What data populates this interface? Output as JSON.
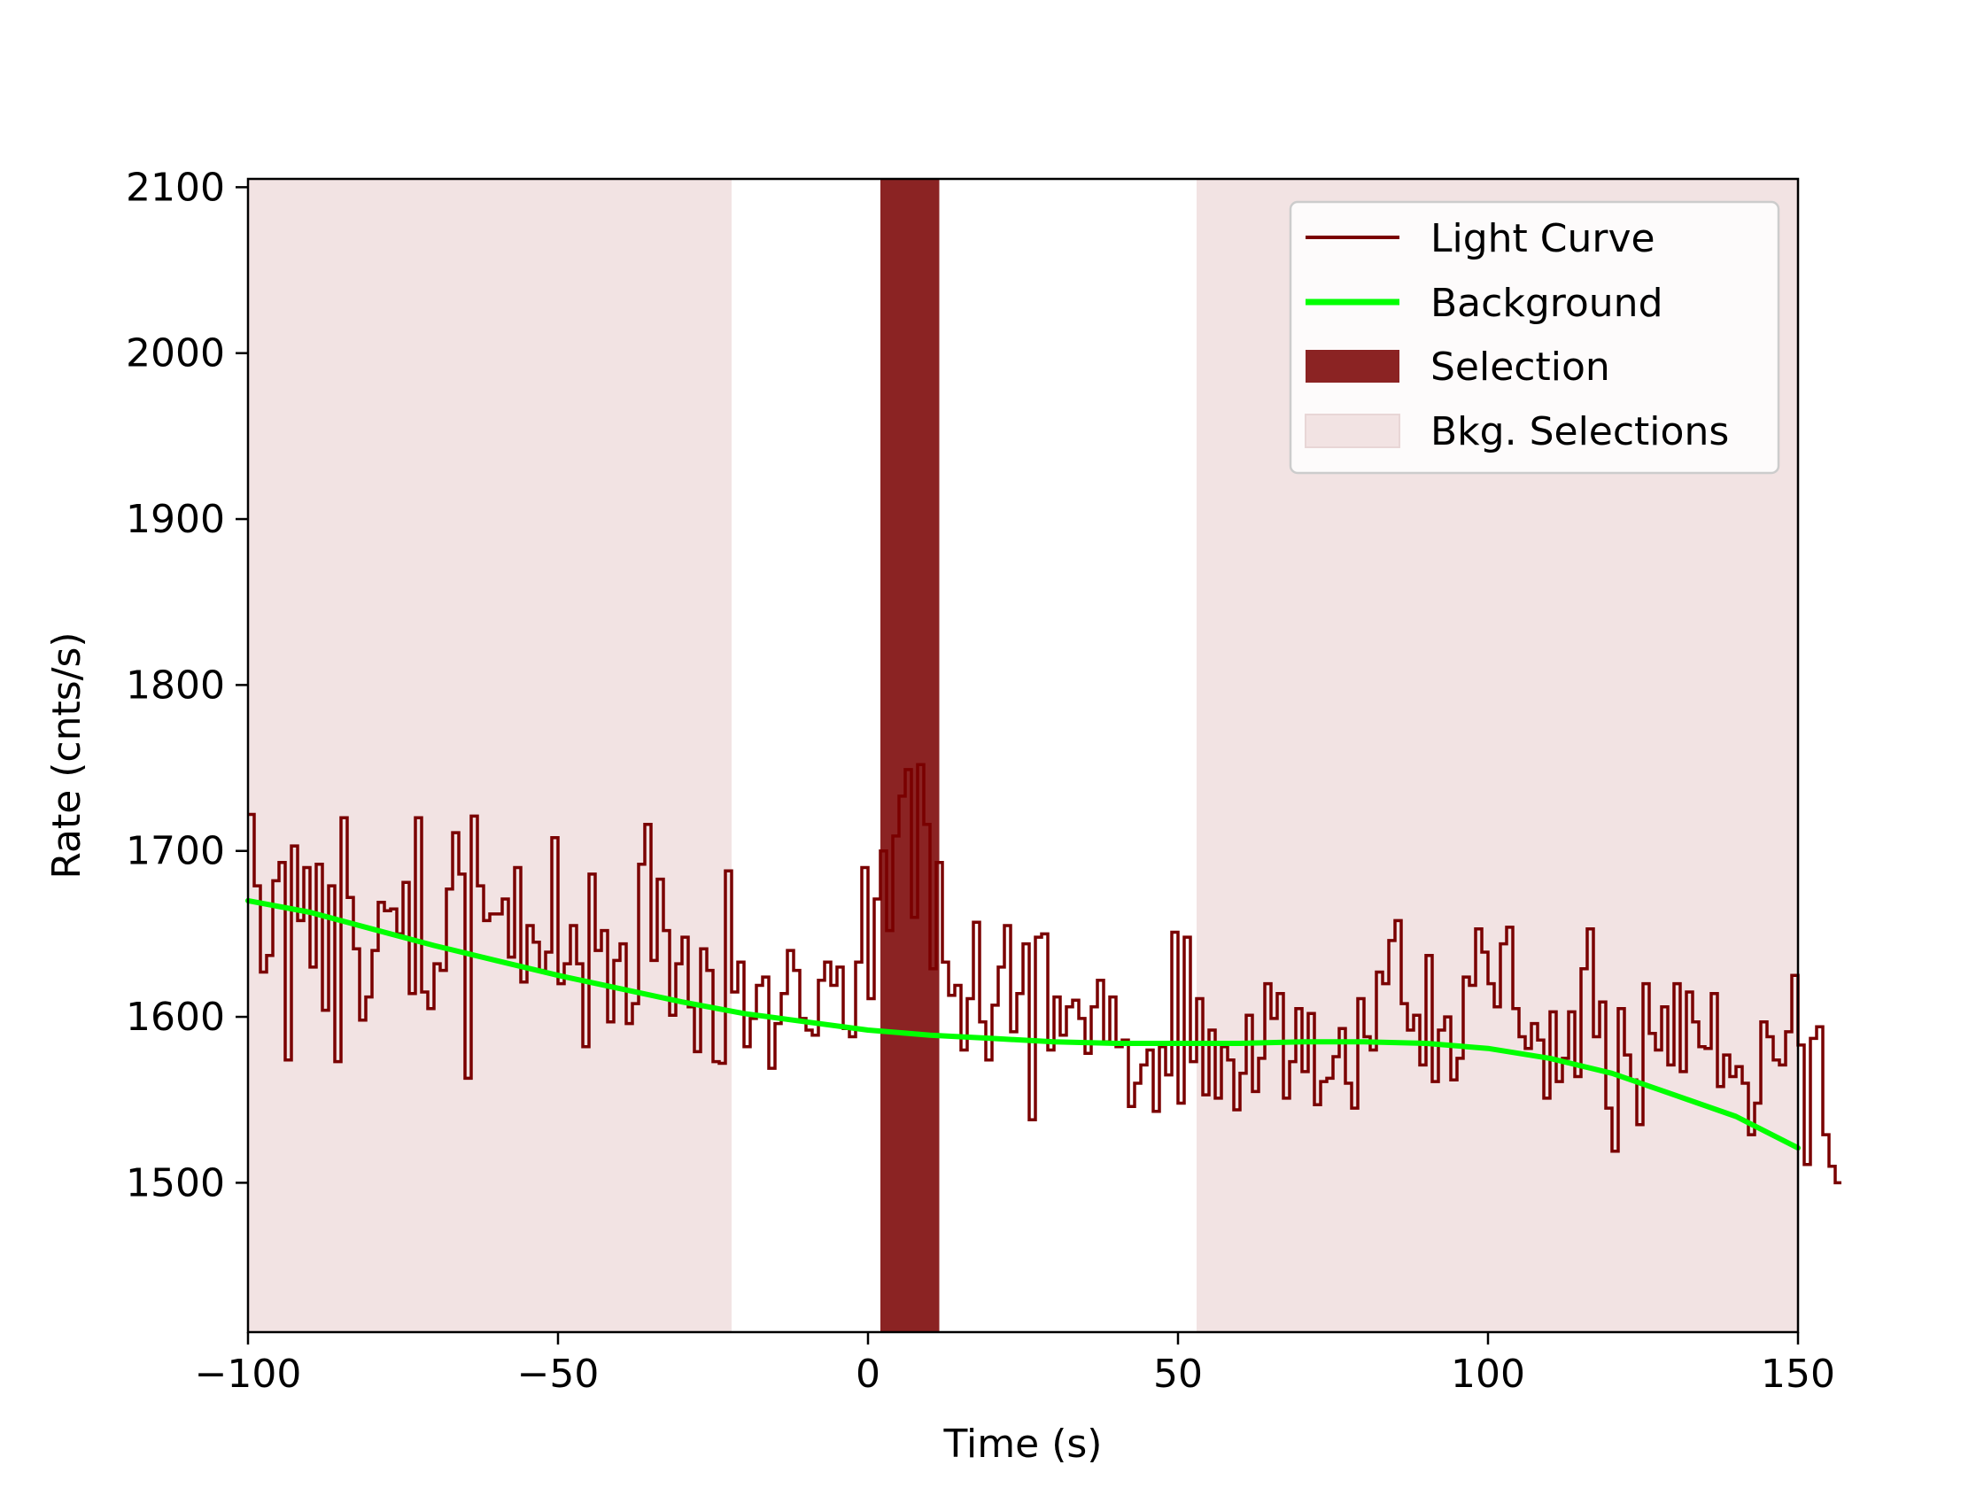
{
  "chart_data": {
    "type": "line",
    "title": "",
    "xlabel": "Time (s)",
    "ylabel": "Rate (cnts/s)",
    "xlim": [
      -100,
      150
    ],
    "ylim": [
      1410,
      2105
    ],
    "xticks": [
      -100,
      -50,
      0,
      50,
      100,
      150
    ],
    "xtick_labels": [
      "−100",
      "−50",
      "0",
      "50",
      "100",
      "150"
    ],
    "yticks": [
      1500,
      1600,
      1700,
      1800,
      1900,
      2000,
      2100
    ],
    "ytick_labels": [
      "1500",
      "1600",
      "1700",
      "1800",
      "1900",
      "2000",
      "2100"
    ],
    "grid": false,
    "legend_position": "top-right",
    "colors": {
      "light_curve": "#7a0000",
      "background": "#00ff00",
      "selection": "#8b2323",
      "bkg_selections": "#f2e3e3"
    },
    "legend": [
      {
        "label": "Light Curve",
        "kind": "line",
        "color": "#7a0000"
      },
      {
        "label": "Background",
        "kind": "line",
        "color": "#00ff00"
      },
      {
        "label": "Selection",
        "kind": "patch",
        "color": "#8b2323"
      },
      {
        "label": "Bkg. Selections",
        "kind": "patch",
        "color": "#f2e3e3"
      }
    ],
    "bkg_selections": [
      [
        -100,
        -22
      ],
      [
        53,
        150
      ]
    ],
    "selection": [
      2,
      11.5
    ],
    "background_curve": {
      "x": [
        -100,
        -90,
        -80,
        -70,
        -60,
        -50,
        -40,
        -30,
        -20,
        -10,
        0,
        10,
        20,
        30,
        40,
        50,
        60,
        70,
        80,
        90,
        100,
        110,
        120,
        130,
        140,
        150
      ],
      "y": [
        1670,
        1663,
        1653,
        1643,
        1634,
        1625,
        1617,
        1609,
        1602,
        1597,
        1592,
        1589,
        1587,
        1585,
        1584,
        1584,
        1584,
        1585,
        1585,
        1584,
        1581,
        1575,
        1566,
        1553,
        1540,
        1521
      ]
    },
    "light_curve": {
      "bin_width": 1,
      "x_start": -100,
      "values": [
        1722,
        1679,
        1627,
        1637,
        1682,
        1693,
        1574,
        1703,
        1658,
        1690,
        1630,
        1692,
        1604,
        1679,
        1573,
        1720,
        1672,
        1641,
        1598,
        1612,
        1640,
        1669,
        1664,
        1665,
        1650,
        1681,
        1614,
        1720,
        1615,
        1605,
        1632,
        1628,
        1677,
        1711,
        1686,
        1563,
        1721,
        1679,
        1658,
        1662,
        1662,
        1671,
        1636,
        1690,
        1621,
        1655,
        1645,
        1628,
        1639,
        1708,
        1620,
        1632,
        1655,
        1632,
        1582,
        1686,
        1640,
        1652,
        1597,
        1634,
        1644,
        1596,
        1608,
        1692,
        1716,
        1634,
        1683,
        1652,
        1601,
        1632,
        1648,
        1606,
        1579,
        1641,
        1628,
        1573,
        1572,
        1688,
        1615,
        1633,
        1582,
        1599,
        1619,
        1624,
        1569,
        1596,
        1614,
        1640,
        1628,
        1599,
        1592,
        1589,
        1622,
        1633,
        1619,
        1630,
        1593,
        1588,
        1633,
        1690,
        1611,
        1671,
        1700,
        1652,
        1709,
        1733,
        1749,
        1660,
        1752,
        1716,
        1629,
        1693,
        1633,
        1613,
        1619,
        1580,
        1611,
        1657,
        1597,
        1574,
        1607,
        1630,
        1655,
        1591,
        1614,
        1644,
        1538,
        1648,
        1650,
        1580,
        1612,
        1589,
        1606,
        1610,
        1599,
        1578,
        1606,
        1622,
        1585,
        1612,
        1582,
        1586,
        1546,
        1560,
        1571,
        1580,
        1543,
        1582,
        1565,
        1651,
        1548,
        1648,
        1573,
        1611,
        1553,
        1592,
        1551,
        1582,
        1574,
        1544,
        1566,
        1601,
        1555,
        1575,
        1620,
        1599,
        1614,
        1551,
        1573,
        1605,
        1567,
        1602,
        1547,
        1561,
        1563,
        1576,
        1593,
        1560,
        1545,
        1611,
        1588,
        1580,
        1627,
        1620,
        1646,
        1658,
        1608,
        1592,
        1601,
        1571,
        1637,
        1561,
        1592,
        1600,
        1562,
        1575,
        1624,
        1619,
        1653,
        1639,
        1620,
        1606,
        1644,
        1654,
        1605,
        1588,
        1581,
        1596,
        1586,
        1551,
        1603,
        1561,
        1575,
        1603,
        1564,
        1629,
        1653,
        1588,
        1609,
        1545,
        1519,
        1605,
        1577,
        1562,
        1535,
        1620,
        1590,
        1580,
        1606,
        1571,
        1620,
        1567,
        1615,
        1597,
        1582,
        1581,
        1614,
        1558,
        1577,
        1564,
        1570,
        1560,
        1529,
        1548,
        1597,
        1588,
        1574,
        1571,
        1591,
        1625,
        1583,
        1511,
        1587,
        1594,
        1529,
        1510,
        1500
      ]
    }
  }
}
